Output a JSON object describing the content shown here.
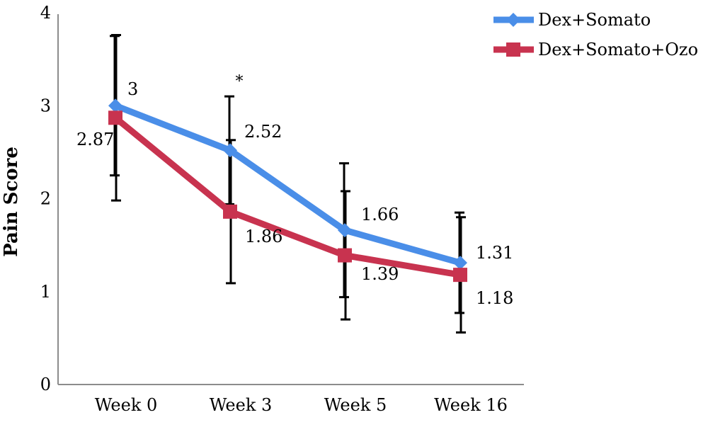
{
  "chart_data": {
    "type": "line",
    "title": "",
    "xlabel": "",
    "ylabel": "Pain Score",
    "ylim": [
      0,
      4
    ],
    "yticks": [
      "0",
      "1",
      "2",
      "3",
      "4"
    ],
    "categories": [
      "Week 0",
      "Week 3",
      "Week 5",
      "Week 16"
    ],
    "grid": false,
    "legend_position": "top-right",
    "series": [
      {
        "name": "Dex+Somato",
        "color": "#4a8ee8",
        "marker": "diamond",
        "values": [
          3,
          2.52,
          1.66,
          1.31
        ],
        "value_labels": [
          "3",
          "2.52",
          "1.66",
          "1.31"
        ],
        "error": [
          0.75,
          0.58,
          0.72,
          0.54
        ]
      },
      {
        "name": "Dex+Somato+Ozo",
        "color": "#c8334f",
        "marker": "square",
        "values": [
          2.87,
          1.86,
          1.39,
          1.18
        ],
        "value_labels": [
          "2.87",
          "1.86",
          "1.39",
          "1.18"
        ],
        "error": [
          0.89,
          0.77,
          0.69,
          0.62
        ]
      }
    ],
    "annotations": [
      {
        "text": "*",
        "category_index": 1
      }
    ]
  }
}
